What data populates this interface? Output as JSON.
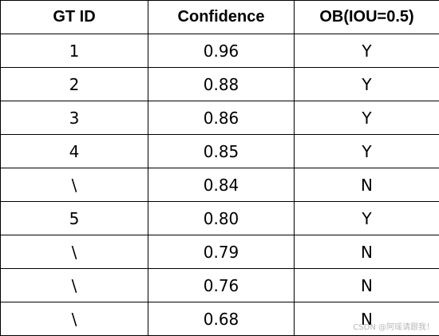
{
  "table": {
    "header": [
      "GT ID",
      "Confidence",
      "OB(IOU=0.5)"
    ],
    "rows": [
      [
        "1",
        "0.96",
        "Y"
      ],
      [
        "2",
        "0.88",
        "Y"
      ],
      [
        "3",
        "0.86",
        "Y"
      ],
      [
        "4",
        "0.85",
        "Y"
      ],
      [
        "\\",
        "0.84",
        "N"
      ],
      [
        "5",
        "0.80",
        "Y"
      ],
      [
        "\\",
        "0.79",
        "N"
      ],
      [
        "\\",
        "0.76",
        "N"
      ],
      [
        "\\",
        "0.68",
        "N"
      ]
    ]
  },
  "watermark": "CSDN @阿瑶请跟我！"
}
